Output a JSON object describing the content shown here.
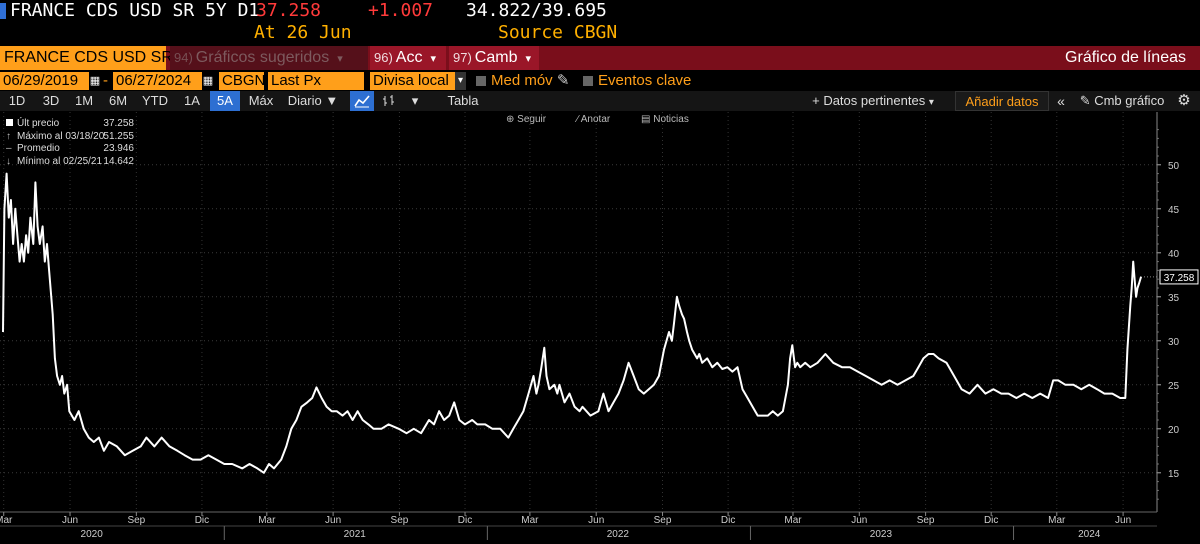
{
  "header": {
    "ticker": "FRANCE CDS USD SR 5Y D1",
    "last": "37.258",
    "change": "+1.007",
    "range": "34.822/39.695",
    "at": "At 26 Jun",
    "source": "Source CBGN"
  },
  "redbar": {
    "security": "FRANCE CDS USD SR",
    "suggested_num": "94)",
    "suggested": "Gráficos sugeridos",
    "acc_num": "96)",
    "acc": "Acc",
    "camb_num": "97)",
    "camb": "Camb",
    "chart_type": "Gráfico de líneas"
  },
  "params": {
    "start_date": "06/29/2019",
    "end_date": "06/27/2024",
    "source": "CBGN",
    "field": "Last Px",
    "currency": "Divisa local",
    "moving_avg": "Med móv",
    "key_events": "Eventos clave"
  },
  "toolbar": {
    "periods": [
      "1D",
      "3D",
      "1M",
      "6M",
      "YTD",
      "1A",
      "5A",
      "Máx"
    ],
    "selected_period": "5A",
    "frequency": "Diario",
    "table": "Tabla",
    "related_data": "+ Datos pertinentes",
    "add_data": "Añadir datos",
    "change_chart": "Cmb gráfico",
    "line_icon": "line-chart-icon",
    "bar_icon": "bar-chart-icon",
    "settings_icon": "gear-icon"
  },
  "chart_tools": {
    "follow": "Seguir",
    "annotate": "Anotar",
    "news": "Noticias"
  },
  "legend": [
    {
      "label": "Últ precio",
      "value": "37.258"
    },
    {
      "label": "Máximo al 03/18/20",
      "value": "51.255"
    },
    {
      "label": "Promedio",
      "value": "23.946"
    },
    {
      "label": "Mínimo al 02/25/21",
      "value": "14.642"
    }
  ],
  "chart_data": {
    "type": "line",
    "title": "",
    "xlabel": "",
    "ylabel": "",
    "ylim": [
      11,
      56
    ],
    "yticks": [
      15,
      20,
      25,
      30,
      35,
      40,
      45,
      50
    ],
    "last_value_label": "37.258",
    "x_month_ticks": [
      {
        "label": "Mar",
        "date": "2020-03-01"
      },
      {
        "label": "Jun",
        "date": "2020-06-01"
      },
      {
        "label": "Sep",
        "date": "2020-09-01"
      },
      {
        "label": "Dic",
        "date": "2020-12-01"
      },
      {
        "label": "Mar",
        "date": "2021-03-01"
      },
      {
        "label": "Jun",
        "date": "2021-06-01"
      },
      {
        "label": "Sep",
        "date": "2021-09-01"
      },
      {
        "label": "Dic",
        "date": "2021-12-01"
      },
      {
        "label": "Mar",
        "date": "2022-03-01"
      },
      {
        "label": "Jun",
        "date": "2022-06-01"
      },
      {
        "label": "Sep",
        "date": "2022-09-01"
      },
      {
        "label": "Dic",
        "date": "2022-12-01"
      },
      {
        "label": "Mar",
        "date": "2023-03-01"
      },
      {
        "label": "Jun",
        "date": "2023-06-01"
      },
      {
        "label": "Sep",
        "date": "2023-09-01"
      },
      {
        "label": "Dic",
        "date": "2023-12-01"
      },
      {
        "label": "Mar",
        "date": "2024-03-01"
      },
      {
        "label": "Jun",
        "date": "2024-06-01"
      }
    ],
    "x_year_labels": [
      {
        "label": "2020",
        "date": "2020-07-01"
      },
      {
        "label": "2021",
        "date": "2021-07-01"
      },
      {
        "label": "2022",
        "date": "2022-07-01"
      },
      {
        "label": "2023",
        "date": "2023-07-01"
      },
      {
        "label": "2024",
        "date": "2024-04-15"
      }
    ],
    "series": [
      {
        "values": [
          [
            "2020-02-29",
            31
          ],
          [
            "2020-03-02",
            45
          ],
          [
            "2020-03-05",
            49
          ],
          [
            "2020-03-08",
            44
          ],
          [
            "2020-03-11",
            46
          ],
          [
            "2020-03-14",
            41
          ],
          [
            "2020-03-17",
            45
          ],
          [
            "2020-03-20",
            42
          ],
          [
            "2020-03-23",
            39
          ],
          [
            "2020-03-26",
            41
          ],
          [
            "2020-03-29",
            39
          ],
          [
            "2020-04-01",
            42
          ],
          [
            "2020-04-04",
            40
          ],
          [
            "2020-04-07",
            44
          ],
          [
            "2020-04-11",
            41
          ],
          [
            "2020-04-14",
            48
          ],
          [
            "2020-04-17",
            43
          ],
          [
            "2020-04-20",
            41
          ],
          [
            "2020-04-24",
            43
          ],
          [
            "2020-04-27",
            39
          ],
          [
            "2020-04-30",
            41
          ],
          [
            "2020-05-03",
            38
          ],
          [
            "2020-05-08",
            33
          ],
          [
            "2020-05-11",
            28
          ],
          [
            "2020-05-14",
            26
          ],
          [
            "2020-05-18",
            25
          ],
          [
            "2020-05-21",
            26
          ],
          [
            "2020-05-24",
            24
          ],
          [
            "2020-05-28",
            25
          ],
          [
            "2020-05-31",
            22
          ],
          [
            "2020-06-07",
            21
          ],
          [
            "2020-06-13",
            22
          ],
          [
            "2020-06-20",
            20
          ],
          [
            "2020-06-27",
            19
          ],
          [
            "2020-07-04",
            18.5
          ],
          [
            "2020-07-11",
            19
          ],
          [
            "2020-07-18",
            17.5
          ],
          [
            "2020-07-25",
            18.5
          ],
          [
            "2020-08-05",
            18
          ],
          [
            "2020-08-16",
            17
          ],
          [
            "2020-08-27",
            17.5
          ],
          [
            "2020-09-07",
            18
          ],
          [
            "2020-09-15",
            19
          ],
          [
            "2020-09-26",
            18
          ],
          [
            "2020-10-06",
            19
          ],
          [
            "2020-10-17",
            18
          ],
          [
            "2020-10-28",
            17.5
          ],
          [
            "2020-11-07",
            17
          ],
          [
            "2020-11-18",
            16.5
          ],
          [
            "2020-11-29",
            16.5
          ],
          [
            "2020-12-10",
            17
          ],
          [
            "2020-12-21",
            16.5
          ],
          [
            "2021-01-01",
            16
          ],
          [
            "2021-01-12",
            16
          ],
          [
            "2021-01-26",
            15.5
          ],
          [
            "2021-02-05",
            16
          ],
          [
            "2021-02-16",
            15.5
          ],
          [
            "2021-02-25",
            15
          ],
          [
            "2021-03-04",
            16
          ],
          [
            "2021-03-11",
            15.5
          ],
          [
            "2021-03-21",
            16.5
          ],
          [
            "2021-03-28",
            18
          ],
          [
            "2021-04-04",
            20
          ],
          [
            "2021-04-11",
            21
          ],
          [
            "2021-04-18",
            22.5
          ],
          [
            "2021-04-26",
            23
          ],
          [
            "2021-05-03",
            23.5
          ],
          [
            "2021-05-09",
            24.7
          ],
          [
            "2021-05-16",
            23.5
          ],
          [
            "2021-05-23",
            22.5
          ],
          [
            "2021-05-30",
            22
          ],
          [
            "2021-06-06",
            22
          ],
          [
            "2021-06-14",
            21.5
          ],
          [
            "2021-06-21",
            22
          ],
          [
            "2021-06-28",
            21
          ],
          [
            "2021-07-05",
            22
          ],
          [
            "2021-07-12",
            21
          ],
          [
            "2021-07-20",
            20.5
          ],
          [
            "2021-07-27",
            20
          ],
          [
            "2021-08-07",
            20
          ],
          [
            "2021-08-17",
            20.5
          ],
          [
            "2021-08-31",
            20
          ],
          [
            "2021-09-11",
            19.5
          ],
          [
            "2021-09-21",
            20
          ],
          [
            "2021-10-01",
            19.5
          ],
          [
            "2021-10-12",
            21
          ],
          [
            "2021-10-19",
            20.5
          ],
          [
            "2021-10-26",
            22
          ],
          [
            "2021-11-02",
            21
          ],
          [
            "2021-11-09",
            21.5
          ],
          [
            "2021-11-16",
            23
          ],
          [
            "2021-11-23",
            21
          ],
          [
            "2021-12-01",
            20.5
          ],
          [
            "2021-12-11",
            21
          ],
          [
            "2021-12-18",
            20.5
          ],
          [
            "2021-12-29",
            20.5
          ],
          [
            "2022-01-08",
            20
          ],
          [
            "2022-01-19",
            20
          ],
          [
            "2022-01-30",
            19
          ],
          [
            "2022-02-06",
            20
          ],
          [
            "2022-02-13",
            21
          ],
          [
            "2022-02-20",
            22
          ],
          [
            "2022-02-27",
            24
          ],
          [
            "2022-03-06",
            26
          ],
          [
            "2022-03-10",
            24
          ],
          [
            "2022-03-13",
            25
          ],
          [
            "2022-03-17",
            27
          ],
          [
            "2022-03-21",
            29.2
          ],
          [
            "2022-03-24",
            26
          ],
          [
            "2022-03-28",
            24.5
          ],
          [
            "2022-04-04",
            25
          ],
          [
            "2022-04-08",
            24
          ],
          [
            "2022-04-11",
            25
          ],
          [
            "2022-04-18",
            23
          ],
          [
            "2022-04-25",
            24
          ],
          [
            "2022-05-02",
            22.5
          ],
          [
            "2022-05-09",
            22
          ],
          [
            "2022-05-13",
            22.5
          ],
          [
            "2022-05-24",
            21.5
          ],
          [
            "2022-06-04",
            22
          ],
          [
            "2022-06-11",
            24
          ],
          [
            "2022-06-18",
            22
          ],
          [
            "2022-06-25",
            23
          ],
          [
            "2022-07-02",
            24
          ],
          [
            "2022-07-09",
            25.5
          ],
          [
            "2022-07-16",
            27.5
          ],
          [
            "2022-07-23",
            26
          ],
          [
            "2022-07-30",
            24.5
          ],
          [
            "2022-08-06",
            24
          ],
          [
            "2022-08-13",
            24.5
          ],
          [
            "2022-08-20",
            25
          ],
          [
            "2022-08-27",
            26
          ],
          [
            "2022-09-03",
            29
          ],
          [
            "2022-09-10",
            31
          ],
          [
            "2022-09-14",
            30
          ],
          [
            "2022-09-17",
            32
          ],
          [
            "2022-09-21",
            35
          ],
          [
            "2022-09-24",
            34
          ],
          [
            "2022-09-28",
            33
          ],
          [
            "2022-10-01",
            32.5
          ],
          [
            "2022-10-05",
            31
          ],
          [
            "2022-10-08",
            30
          ],
          [
            "2022-10-12",
            29
          ],
          [
            "2022-10-19",
            28
          ],
          [
            "2022-10-22",
            28.5
          ],
          [
            "2022-10-26",
            27.5
          ],
          [
            "2022-11-02",
            28
          ],
          [
            "2022-11-09",
            27
          ],
          [
            "2022-11-16",
            27.5
          ],
          [
            "2022-11-23",
            26.8
          ],
          [
            "2022-11-30",
            27
          ],
          [
            "2022-12-07",
            26.5
          ],
          [
            "2022-12-14",
            27
          ],
          [
            "2022-12-21",
            24.5
          ],
          [
            "2022-12-28",
            23.5
          ],
          [
            "2023-01-04",
            22.5
          ],
          [
            "2023-01-11",
            21.5
          ],
          [
            "2023-01-18",
            21.5
          ],
          [
            "2023-01-25",
            21.5
          ],
          [
            "2023-02-01",
            22
          ],
          [
            "2023-02-08",
            21.5
          ],
          [
            "2023-02-15",
            22
          ],
          [
            "2023-02-22",
            25
          ],
          [
            "2023-02-25",
            28
          ],
          [
            "2023-02-28",
            29.5
          ],
          [
            "2023-03-04",
            27
          ],
          [
            "2023-03-07",
            27.5
          ],
          [
            "2023-03-11",
            27
          ],
          [
            "2023-03-18",
            27.5
          ],
          [
            "2023-03-25",
            27
          ],
          [
            "2023-04-04",
            27.5
          ],
          [
            "2023-04-15",
            28.5
          ],
          [
            "2023-04-26",
            27.5
          ],
          [
            "2023-05-08",
            27
          ],
          [
            "2023-05-19",
            27
          ],
          [
            "2023-05-30",
            26.5
          ],
          [
            "2023-06-10",
            26
          ],
          [
            "2023-06-21",
            25.5
          ],
          [
            "2023-07-02",
            25
          ],
          [
            "2023-07-13",
            25.5
          ],
          [
            "2023-07-24",
            25
          ],
          [
            "2023-08-04",
            25.5
          ],
          [
            "2023-08-15",
            26
          ],
          [
            "2023-08-22",
            27
          ],
          [
            "2023-08-29",
            28
          ],
          [
            "2023-09-05",
            28.5
          ],
          [
            "2023-09-12",
            28.5
          ],
          [
            "2023-09-19",
            28
          ],
          [
            "2023-09-30",
            27.5
          ],
          [
            "2023-10-07",
            26.5
          ],
          [
            "2023-10-14",
            25.5
          ],
          [
            "2023-10-21",
            24.5
          ],
          [
            "2023-11-01",
            24
          ],
          [
            "2023-11-12",
            25
          ],
          [
            "2023-11-23",
            24
          ],
          [
            "2023-12-04",
            24.5
          ],
          [
            "2023-12-15",
            24
          ],
          [
            "2023-12-25",
            24
          ],
          [
            "2024-01-05",
            23.5
          ],
          [
            "2024-01-16",
            24
          ],
          [
            "2024-01-27",
            23.5
          ],
          [
            "2024-02-07",
            24
          ],
          [
            "2024-02-18",
            23.5
          ],
          [
            "2024-02-25",
            25.5
          ],
          [
            "2024-03-03",
            25.5
          ],
          [
            "2024-03-13",
            25
          ],
          [
            "2024-03-24",
            25
          ],
          [
            "2024-04-04",
            24.5
          ],
          [
            "2024-04-15",
            25
          ],
          [
            "2024-04-26",
            24.5
          ],
          [
            "2024-05-06",
            24
          ],
          [
            "2024-05-17",
            24
          ],
          [
            "2024-05-28",
            23.5
          ],
          [
            "2024-06-04",
            23.5
          ],
          [
            "2024-06-07",
            29
          ],
          [
            "2024-06-11",
            34
          ],
          [
            "2024-06-13",
            36
          ],
          [
            "2024-06-15",
            39
          ],
          [
            "2024-06-17",
            37
          ],
          [
            "2024-06-19",
            35
          ],
          [
            "2024-06-21",
            36
          ],
          [
            "2024-06-23",
            36.5
          ],
          [
            "2024-06-26",
            37.3
          ]
        ]
      }
    ]
  }
}
